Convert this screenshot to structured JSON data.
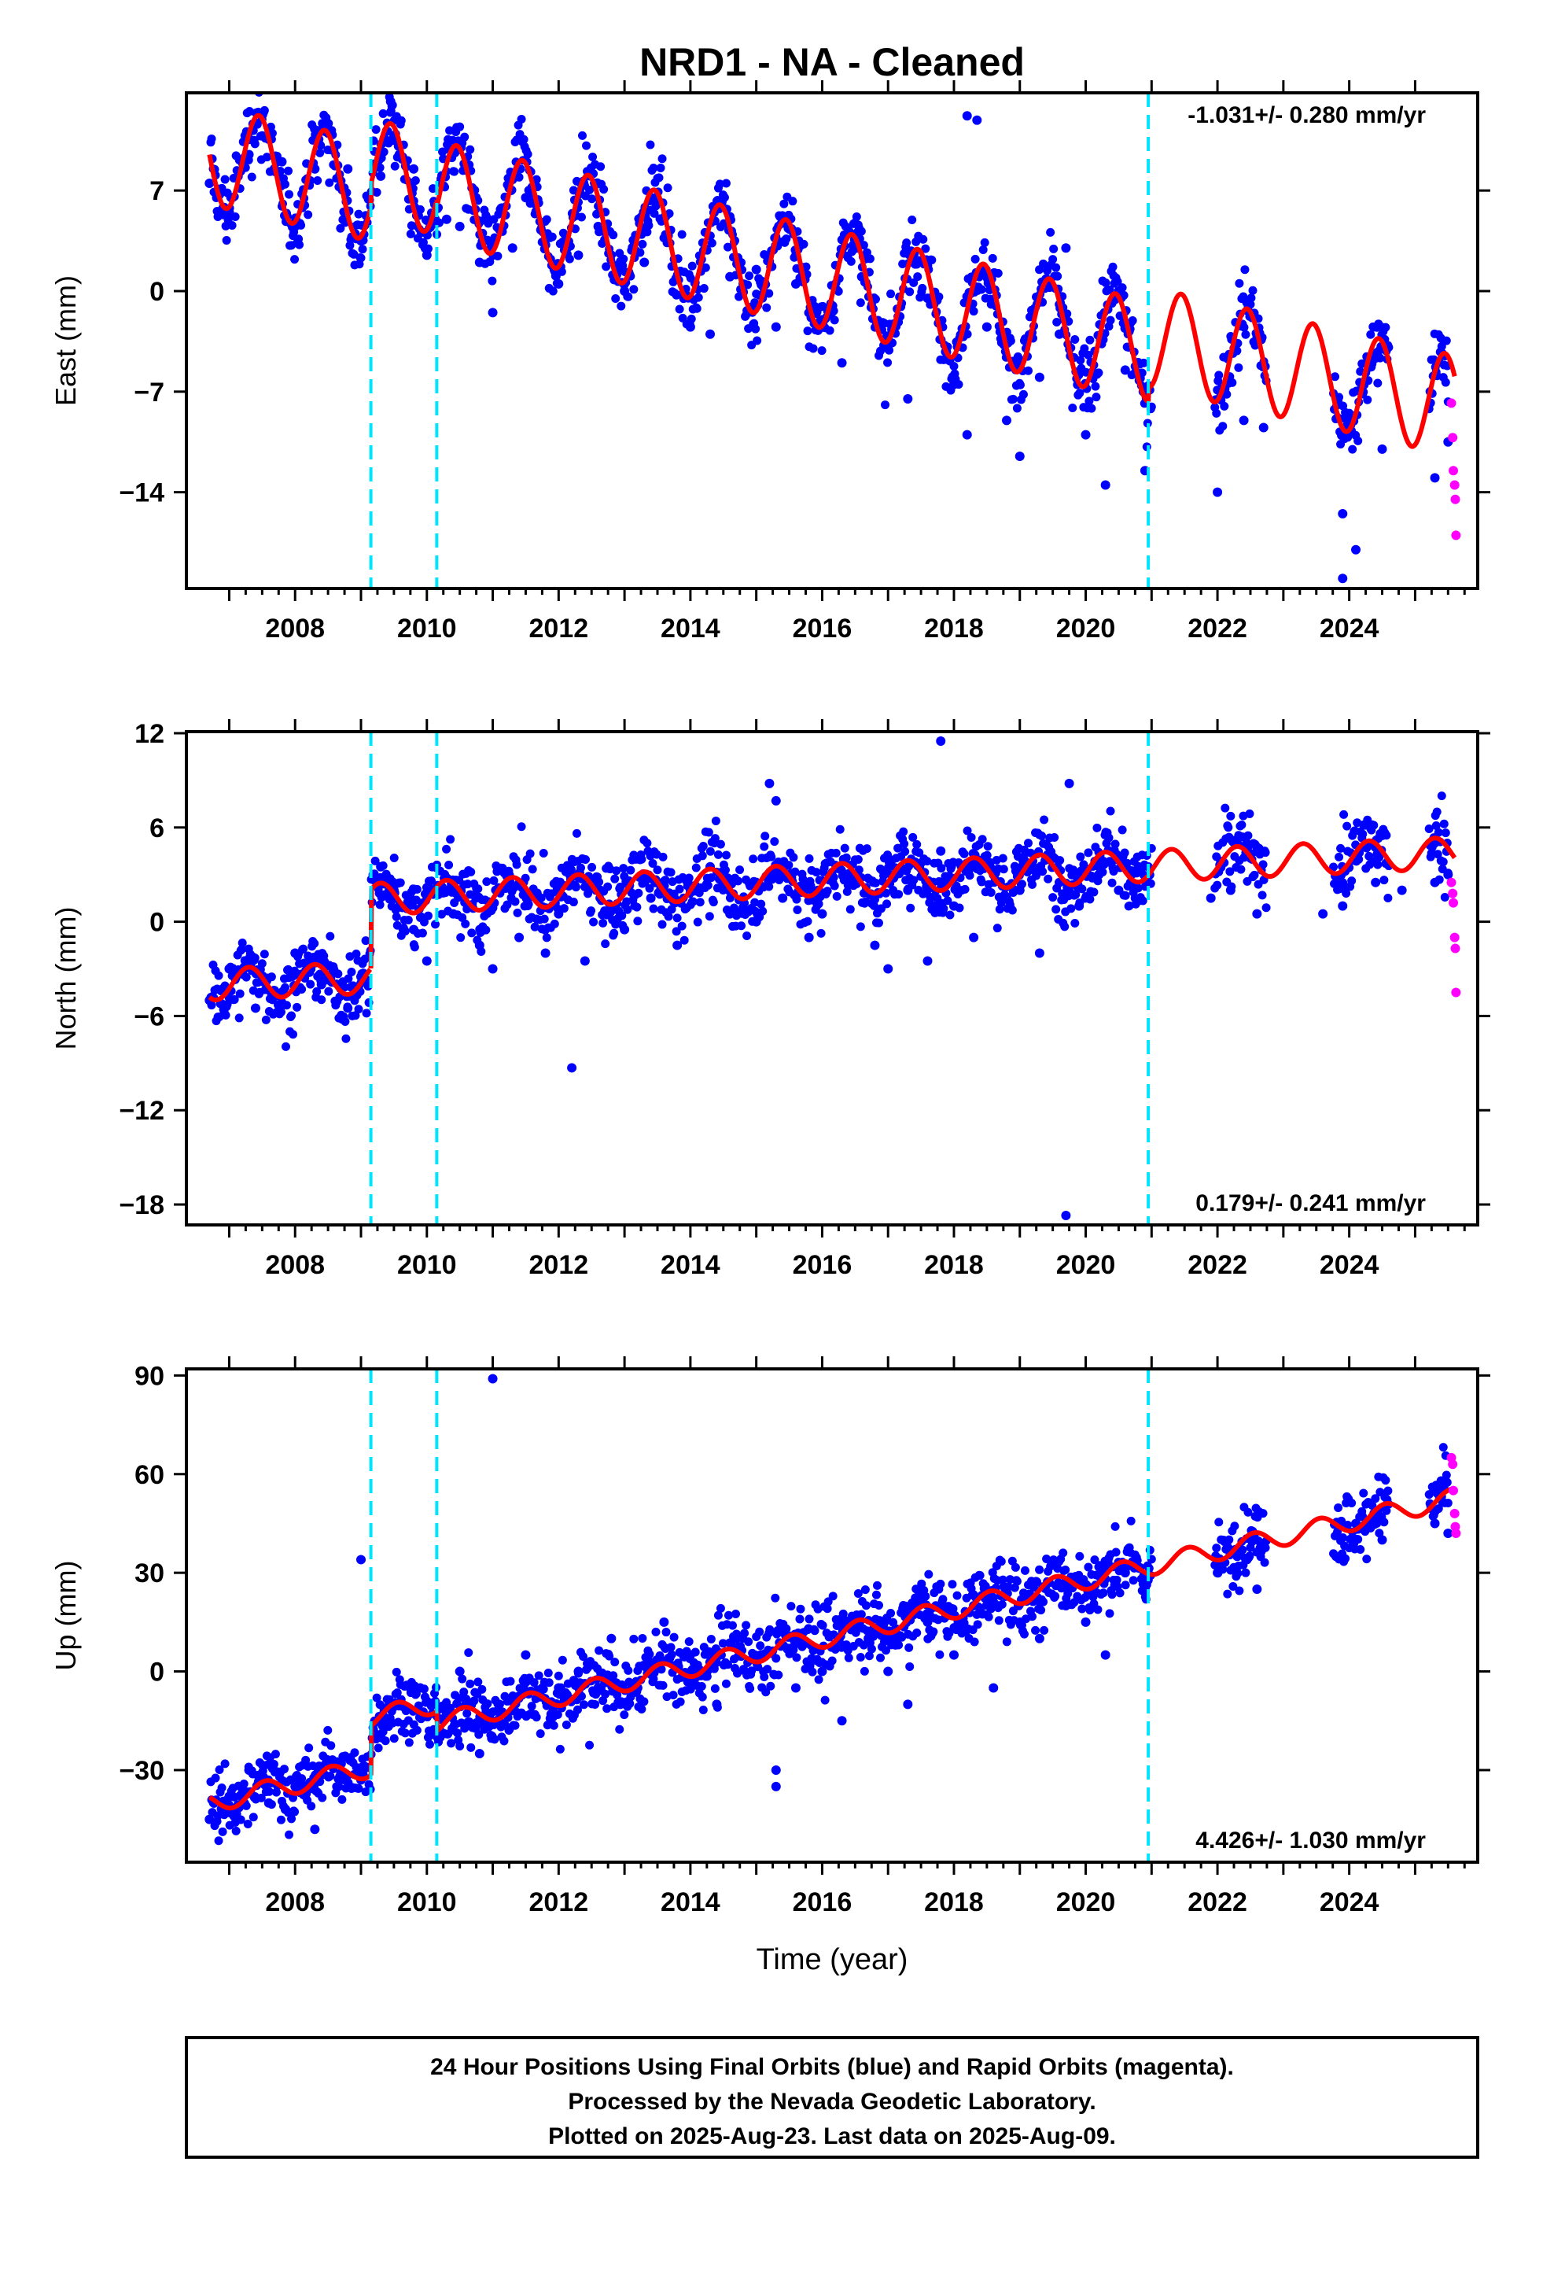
{
  "title": "NRD1  - NA - Cleaned",
  "colors": {
    "final_points": "#0000ff",
    "rapid_points": "#ff00ff",
    "model_line": "#ff0000",
    "event_lines": "#00e5ff",
    "frame": "#000000"
  },
  "x_axis": {
    "label": "Time (year)",
    "range": [
      2006.35,
      2025.95
    ],
    "ticks": [
      "2008",
      "2010",
      "2012",
      "2014",
      "2016",
      "2018",
      "2020",
      "2022",
      "2024"
    ],
    "tick_values": [
      2008,
      2010,
      2012,
      2014,
      2016,
      2018,
      2020,
      2022,
      2024
    ]
  },
  "event_lines_years": [
    2009.15,
    2010.15,
    2020.95
  ],
  "footer": {
    "line1": "24 Hour Positions Using Final Orbits (blue) and Rapid Orbits (magenta).",
    "line2": "Processed by the Nevada Geodetic Laboratory.",
    "line3": "Plotted on 2025-Aug-23. Last data on 2025-Aug-09."
  },
  "chart_data": [
    {
      "type": "scatter",
      "component": "East",
      "ylabel": "East (mm)",
      "rate_label": "-1.031+/- 0.280 mm/yr",
      "rate_position": "top-right",
      "ylim": [
        -20.7,
        13.8
      ],
      "yticks": [
        7,
        0,
        -7,
        -14
      ],
      "ytick_labels": [
        "7",
        "0",
        "−7",
        "−14"
      ],
      "series": [
        {
          "name": "Final Orbits",
          "role": "final",
          "color": "#0000ff",
          "x": [
            2006.7,
            2007.0,
            2007.3,
            2007.5,
            2007.8,
            2008.0,
            2008.3,
            2008.5,
            2008.8,
            2009.0,
            2009.3,
            2009.5,
            2009.8,
            2010.0,
            2010.3,
            2010.5,
            2010.8,
            2011.0,
            2011.3,
            2011.5,
            2012.0,
            2012.3,
            2012.6,
            2013.0,
            2013.3,
            2013.6,
            2014.0,
            2014.3,
            2014.6,
            2015.0,
            2015.3,
            2015.6,
            2016.0,
            2016.3,
            2016.6,
            2017.0,
            2017.3,
            2017.6,
            2018.0,
            2018.2,
            2018.5,
            2018.8,
            2019.0,
            2019.3,
            2019.6,
            2020.0,
            2020.3,
            2020.6,
            2020.9,
            2022.0,
            2022.4,
            2022.7,
            2023.9,
            2024.1,
            2024.5,
            2025.3,
            2025.5
          ],
          "y": [
            7.5,
            5.5,
            9.5,
            10.8,
            9.0,
            4.5,
            8.5,
            11.0,
            8.5,
            3.5,
            8.0,
            10.5,
            8.5,
            2.5,
            5.0,
            4.5,
            2.0,
            -1.5,
            3.0,
            6.5,
            0.5,
            2.5,
            4.5,
            0.0,
            2.0,
            5.0,
            -2.5,
            -3.0,
            1.0,
            1.5,
            -2.5,
            0.5,
            -2.0,
            -5.0,
            1.0,
            -4.0,
            -7.5,
            -0.5,
            -6.5,
            -10.0,
            -2.5,
            -9.0,
            -11.5,
            -6.0,
            -3.0,
            -10.0,
            -13.5,
            -5.5,
            -12.5,
            -14.0,
            -9.0,
            -9.5,
            -15.5,
            -18.0,
            -11.0,
            -13.0,
            -10.5
          ]
        },
        {
          "name": "Rapid Orbits",
          "role": "rapid",
          "color": "#ff00ff",
          "x": [
            2025.55,
            2025.57,
            2025.58,
            2025.6,
            2025.61,
            2025.62
          ],
          "y": [
            -7.8,
            -10.2,
            -12.5,
            -13.5,
            -14.5,
            -17.0
          ]
        }
      ],
      "model": {
        "offset": 9.5,
        "rate": -1.031,
        "amplitude": 3.5,
        "phase_peak_year_frac": 0.45,
        "steps": [
          {
            "year": 2009.15,
            "size": 1.5
          },
          {
            "year": 2010.15,
            "size": -0.5
          },
          {
            "year": 2020.95,
            "size": 1.0
          }
        ]
      },
      "outliers": {
        "x": [
          2009.45,
          2018.2,
          2018.35,
          2019.7,
          2023.9
        ],
        "y": [
          13.2,
          12.2,
          11.9,
          3.0,
          -20.0
        ]
      }
    },
    {
      "type": "scatter",
      "component": "North",
      "ylabel": "North (mm)",
      "rate_label": "0.179+/- 0.241 mm/yr",
      "rate_position": "bottom-right",
      "ylim": [
        -19.3,
        12.1
      ],
      "yticks": [
        12,
        6,
        0,
        -6,
        -12,
        -18
      ],
      "ytick_labels": [
        "12",
        "6",
        "0",
        "−6",
        "−12",
        "−18"
      ],
      "series": [
        {
          "name": "Final Orbits",
          "role": "final",
          "color": "#0000ff",
          "x": [
            2006.7,
            2007.0,
            2007.4,
            2007.7,
            2008.0,
            2008.4,
            2008.8,
            2009.0,
            2009.3,
            2009.5,
            2009.8,
            2010.0,
            2010.4,
            2010.8,
            2011.0,
            2011.4,
            2011.8,
            2012.0,
            2012.4,
            2012.8,
            2013.0,
            2013.4,
            2013.8,
            2014.0,
            2014.3,
            2014.6,
            2015.0,
            2015.4,
            2015.8,
            2016.0,
            2016.4,
            2016.8,
            2017.0,
            2017.3,
            2017.6,
            2017.8,
            2018.0,
            2018.3,
            2018.6,
            2019.0,
            2019.3,
            2019.6,
            2019.9,
            2020.2,
            2020.5,
            2020.8,
            2021.9,
            2022.2,
            2022.6,
            2023.6,
            2023.9,
            2024.4,
            2024.8,
            2025.3,
            2025.5
          ],
          "y": [
            -5.0,
            -3.0,
            -5.5,
            -4.5,
            -2.0,
            -4.0,
            -5.5,
            -3.5,
            3.5,
            2.0,
            -0.5,
            -2.5,
            0.5,
            -1.5,
            -3.0,
            -1.0,
            -2.0,
            0.5,
            -2.5,
            1.0,
            -0.5,
            1.5,
            -1.5,
            2.0,
            3.5,
            0.5,
            0.0,
            1.5,
            -1.0,
            0.5,
            2.5,
            -1.5,
            -3.0,
            2.0,
            -2.5,
            4.5,
            1.0,
            -1.0,
            3.0,
            2.0,
            -2.0,
            2.5,
            1.0,
            3.0,
            2.0,
            3.5,
            1.5,
            2.0,
            0.5,
            0.5,
            1.0,
            2.5,
            2.0,
            2.5,
            3.0
          ]
        },
        {
          "name": "Rapid Orbits",
          "role": "rapid",
          "color": "#ff00ff",
          "x": [
            2025.55,
            2025.57,
            2025.58,
            2025.6,
            2025.61,
            2025.62
          ],
          "y": [
            2.5,
            1.8,
            1.2,
            -1.0,
            -1.7,
            -4.5
          ]
        }
      ],
      "model": {
        "offset": -4.0,
        "rate": 0.179,
        "amplitude": 1.0,
        "phase_peak_year_frac": 0.3,
        "steps": [
          {
            "year": 2009.15,
            "size": 5.0
          },
          {
            "year": 2010.15,
            "size": 0.0
          },
          {
            "year": 2020.95,
            "size": 0.0
          }
        ]
      },
      "outliers": {
        "x": [
          2012.2,
          2015.2,
          2015.3,
          2017.8,
          2019.75,
          2019.7
        ],
        "y": [
          -9.3,
          8.8,
          7.7,
          11.5,
          8.8,
          -18.7
        ]
      }
    },
    {
      "type": "scatter",
      "component": "Up",
      "ylabel": "Up (mm)",
      "rate_label": "4.426+/- 1.030 mm/yr",
      "rate_position": "bottom-right",
      "ylim": [
        -58,
        92
      ],
      "yticks": [
        90,
        60,
        30,
        0,
        -30
      ],
      "ytick_labels": [
        "90",
        "60",
        "30",
        "0",
        "−30"
      ],
      "series": [
        {
          "name": "Final Orbits",
          "role": "final",
          "color": "#0000ff",
          "x": [
            2006.7,
            2007.0,
            2007.3,
            2007.6,
            2008.0,
            2008.3,
            2008.7,
            2009.0,
            2009.3,
            2009.6,
            2009.9,
            2010.2,
            2010.5,
            2010.8,
            2011.1,
            2011.5,
            2012.0,
            2012.3,
            2012.8,
            2013.2,
            2013.6,
            2014.0,
            2014.4,
            2014.7,
            2015.3,
            2015.6,
            2016.0,
            2016.3,
            2016.7,
            2017.0,
            2017.3,
            2017.6,
            2018.0,
            2018.3,
            2018.6,
            2019.0,
            2019.3,
            2019.7,
            2020.0,
            2020.3,
            2020.6,
            2020.9,
            2022.0,
            2022.3,
            2022.6,
            2023.8,
            2024.1,
            2024.5,
            2025.3,
            2025.5
          ],
          "y": [
            -45,
            -38,
            -30,
            -40,
            -35,
            -48,
            -28,
            -33,
            -15,
            -10,
            -5,
            -20,
            0,
            -25,
            -10,
            5,
            -5,
            0,
            10,
            -5,
            15,
            5,
            -10,
            10,
            -30,
            -5,
            0,
            -15,
            10,
            0,
            -10,
            15,
            5,
            20,
            -5,
            15,
            10,
            20,
            15,
            5,
            30,
            25,
            30,
            35,
            25,
            35,
            45,
            40,
            45,
            42
          ]
        },
        {
          "name": "Rapid Orbits",
          "role": "rapid",
          "color": "#ff00ff",
          "x": [
            2025.55,
            2025.57,
            2025.58,
            2025.6,
            2025.61,
            2025.62
          ],
          "y": [
            65,
            63,
            55,
            48,
            44,
            42
          ]
        }
      ],
      "model": {
        "offset": -40,
        "rate": 4.426,
        "amplitude": 3.0,
        "phase_peak_year_frac": 0.55,
        "steps": [
          {
            "year": 2009.15,
            "size": 15.0
          },
          {
            "year": 2010.15,
            "size": -6.0
          },
          {
            "year": 2020.95,
            "size": 0.0
          }
        ]
      },
      "outliers": {
        "x": [
          2009.0,
          2011.0,
          2015.3
        ],
        "y": [
          34,
          89,
          -35
        ]
      }
    }
  ]
}
